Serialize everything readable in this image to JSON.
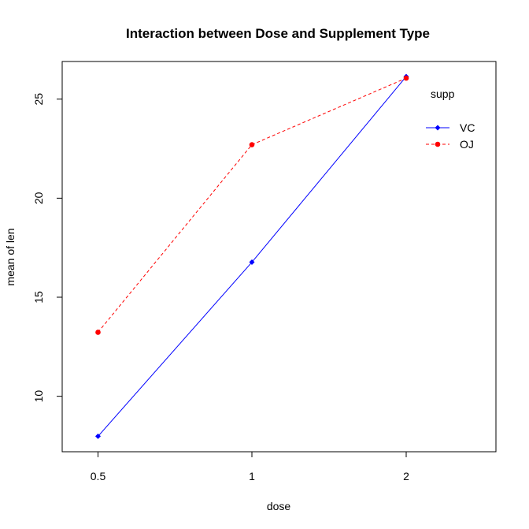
{
  "chart_data": {
    "type": "line",
    "title": "Interaction between Dose and Supplement Type",
    "xlabel": "dose",
    "ylabel": "mean of len",
    "categories": [
      "0.5",
      "1",
      "2"
    ],
    "ylim": [
      7.2,
      26.9
    ],
    "yticks": [
      10,
      15,
      20,
      25
    ],
    "grid": false,
    "legend": {
      "title": "supp",
      "position": "top-right"
    },
    "series": [
      {
        "name": "VC",
        "values": [
          7.98,
          16.77,
          26.14
        ],
        "color": "#0000ff",
        "line_style": "solid",
        "marker": "diamond"
      },
      {
        "name": "OJ",
        "values": [
          13.23,
          22.7,
          26.06
        ],
        "color": "#ff0000",
        "line_style": "dashed",
        "marker": "circle"
      }
    ]
  }
}
